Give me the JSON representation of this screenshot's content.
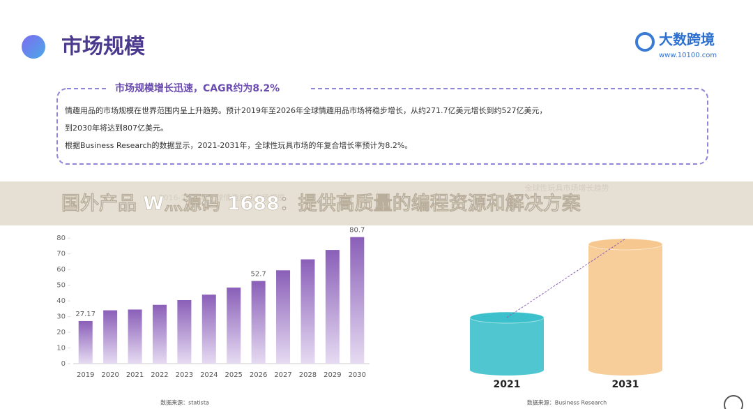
{
  "header": {
    "title": "市场规模",
    "logo": "大数跨境",
    "url": "www.10100.com"
  },
  "box": {
    "title": "市场规模增长迅速，CAGR约为8.2%",
    "lines": [
      "情趣用品的市场规模在世界范围内呈上升趋势。预计2019年至2026年全球情趣用品市场将稳步增长，从约271.7亿美元增长到约527亿美元，",
      "到2030年将达到807亿美元。",
      "根据Business Research的数据显示，2021-2031年，全球性玩具市场的年复合增长率预计为8.2%。"
    ]
  },
  "banner": "国外产品 W灬源码 1688：提供高质量的编程资源和解决方案",
  "chart_data": [
    {
      "type": "bar",
      "title": "2016-2030年全球情趣用品市场规模",
      "source": "数据来源：statista",
      "categories": [
        "2019",
        "2020",
        "2021",
        "2022",
        "2023",
        "2024",
        "2025",
        "2026",
        "2027",
        "2028",
        "2029",
        "2030"
      ],
      "values": [
        27.17,
        34,
        34.5,
        37.5,
        40.5,
        44,
        48.5,
        52.7,
        59.5,
        66.5,
        72.5,
        80.7
      ],
      "value_labels": [
        27.17,
        null,
        null,
        null,
        null,
        null,
        null,
        52.7,
        null,
        null,
        null,
        80.7
      ],
      "color": "#8a5fb8",
      "ylim": [
        0,
        85
      ],
      "yticks": [
        0,
        10,
        20,
        30,
        40,
        50,
        60,
        70,
        80
      ]
    },
    {
      "type": "cylinder",
      "title": "全球性玩具市场增长趋势",
      "source": "数据来源：Business Research",
      "categories": [
        "2021",
        "2031"
      ],
      "values": [
        75,
        180
      ],
      "colors": [
        "#3cc0cb",
        "#f6c88f"
      ]
    }
  ]
}
